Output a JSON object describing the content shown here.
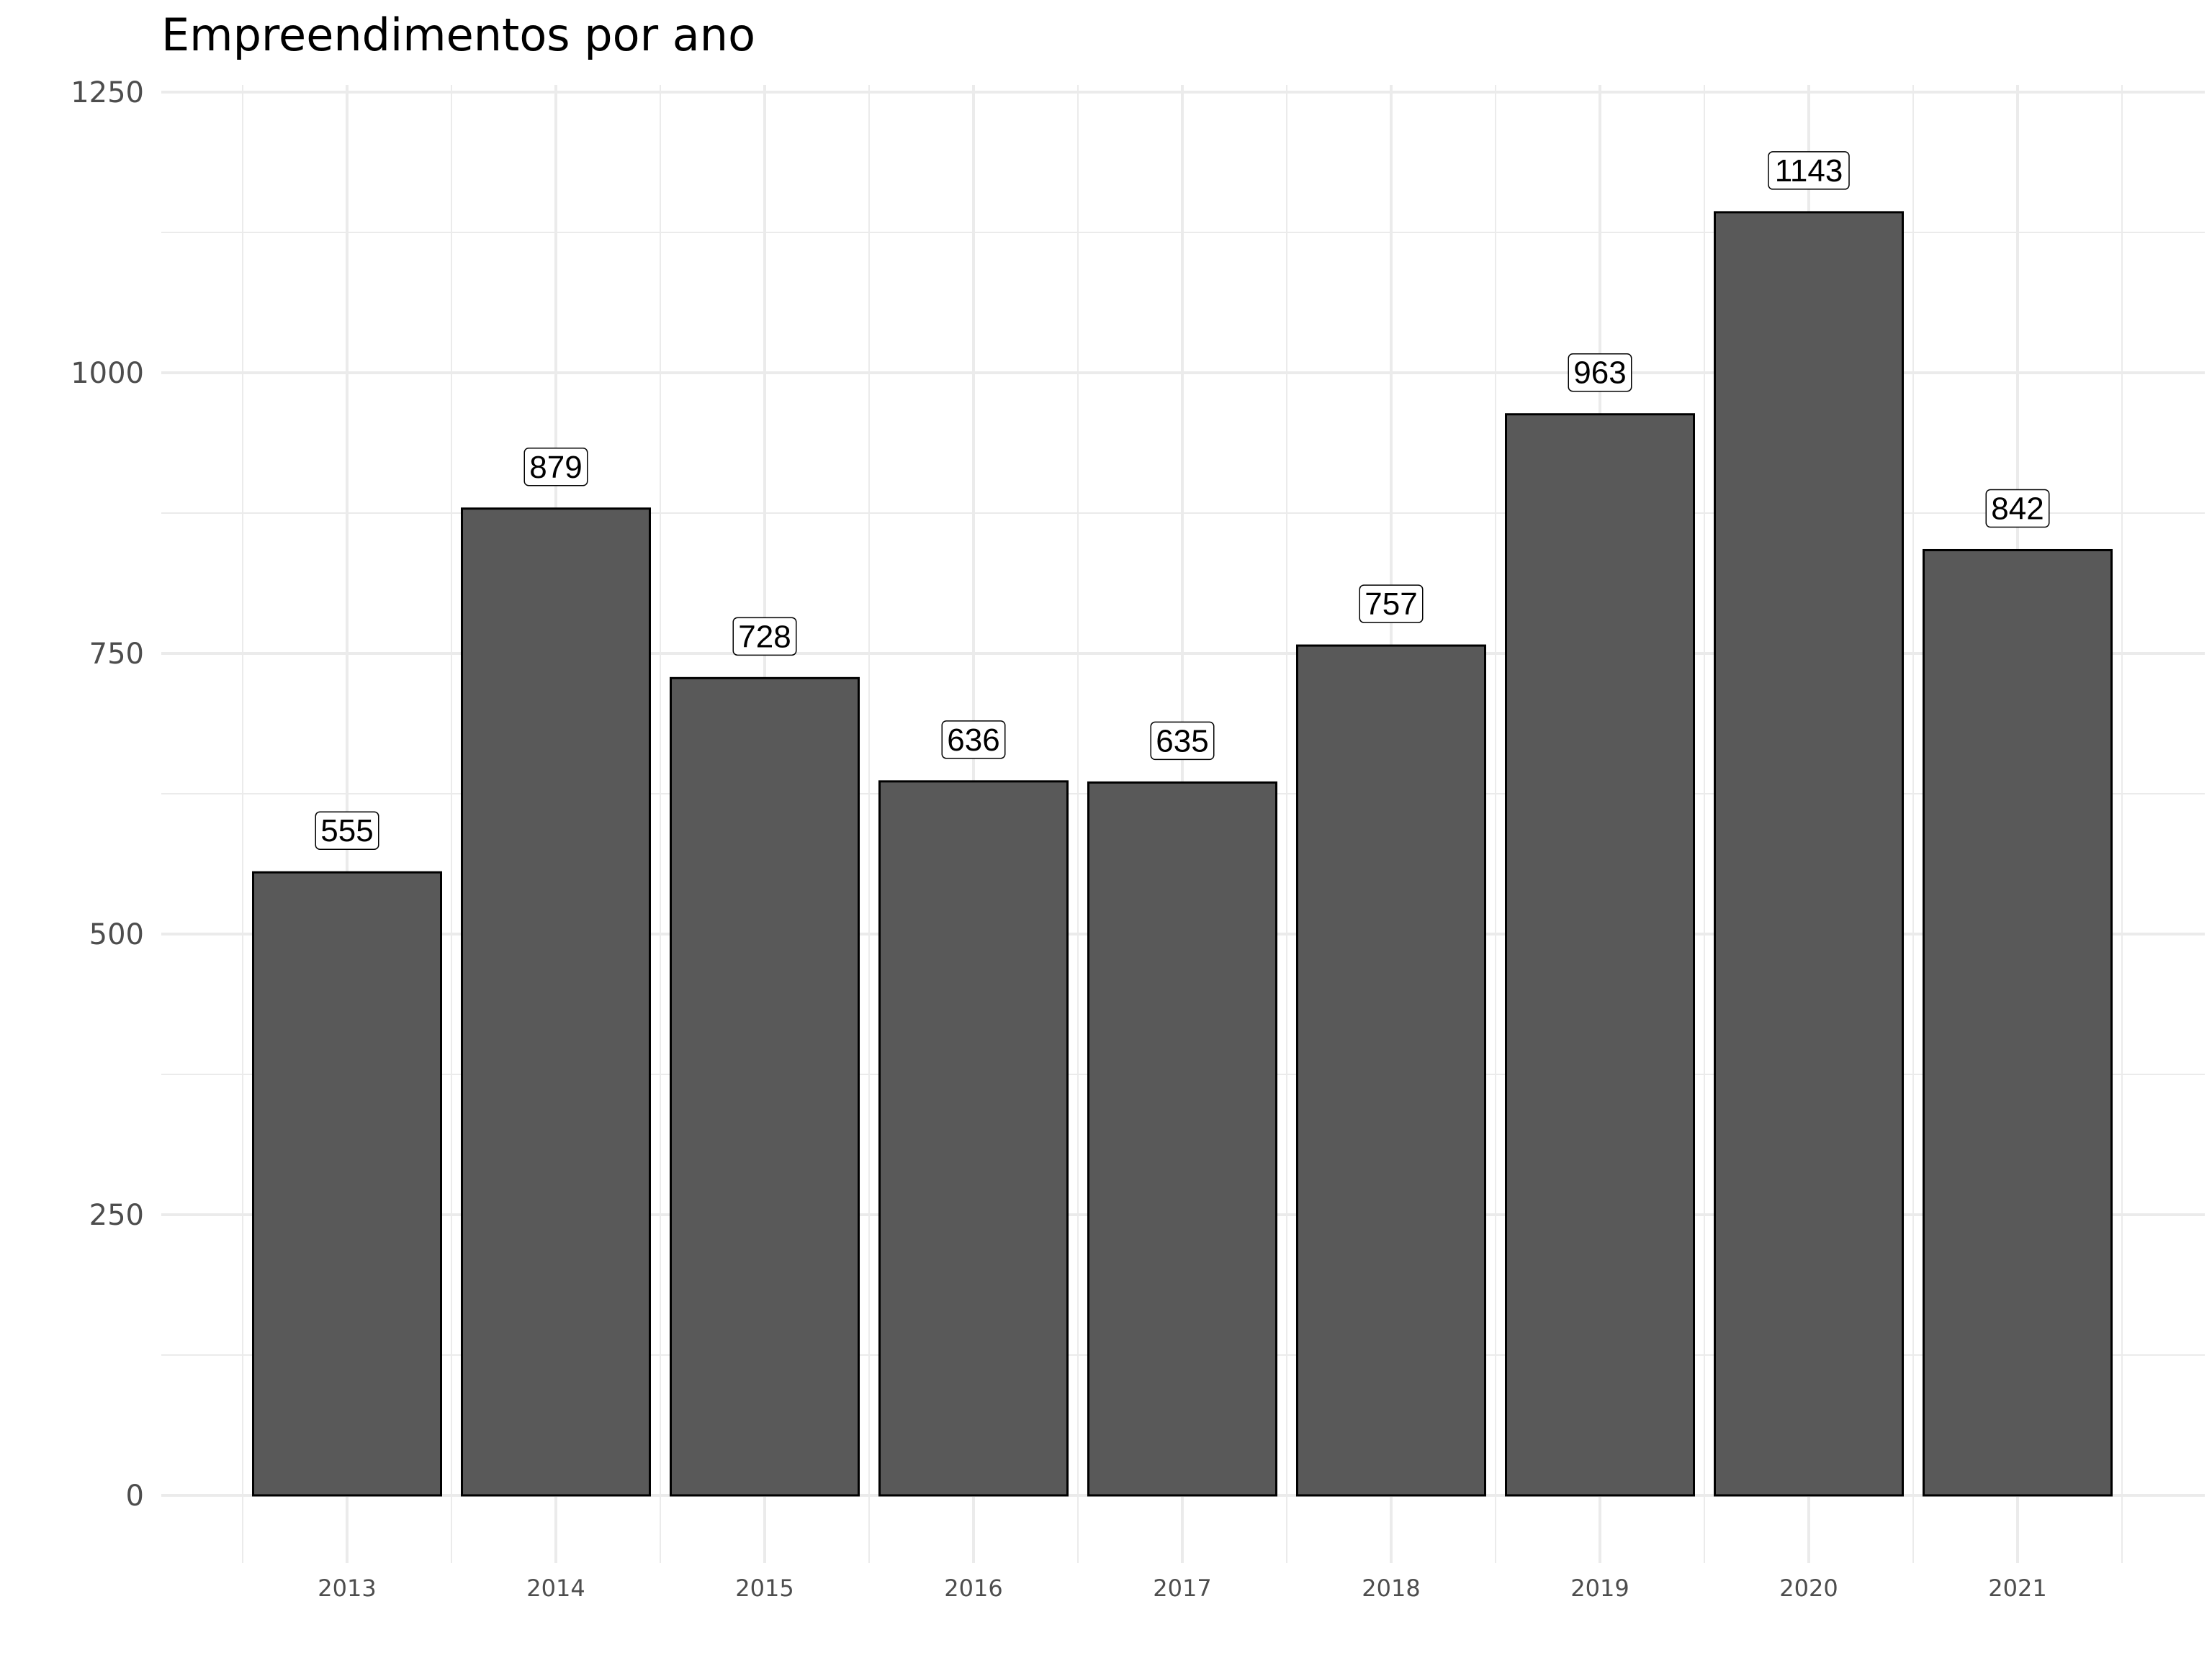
{
  "chart_data": {
    "type": "bar",
    "title": "Empreendimentos por ano",
    "xlabel": "",
    "ylabel": "",
    "categories": [
      "2013",
      "2014",
      "2015",
      "2016",
      "2017",
      "2018",
      "2019",
      "2020",
      "2021"
    ],
    "values": [
      555,
      879,
      728,
      636,
      635,
      757,
      963,
      1143,
      842
    ],
    "data_labels": [
      "555",
      "879",
      "728",
      "636",
      "635",
      "757",
      "963",
      "1143",
      "842"
    ],
    "ylim": [
      0,
      1250
    ],
    "yticks": [
      0,
      250,
      500,
      750,
      1000,
      1250
    ],
    "grid": true,
    "legend": "none",
    "colors": {
      "bar_fill": "#595959",
      "bar_outline": "#000000",
      "grid": "#ebebeb"
    }
  }
}
